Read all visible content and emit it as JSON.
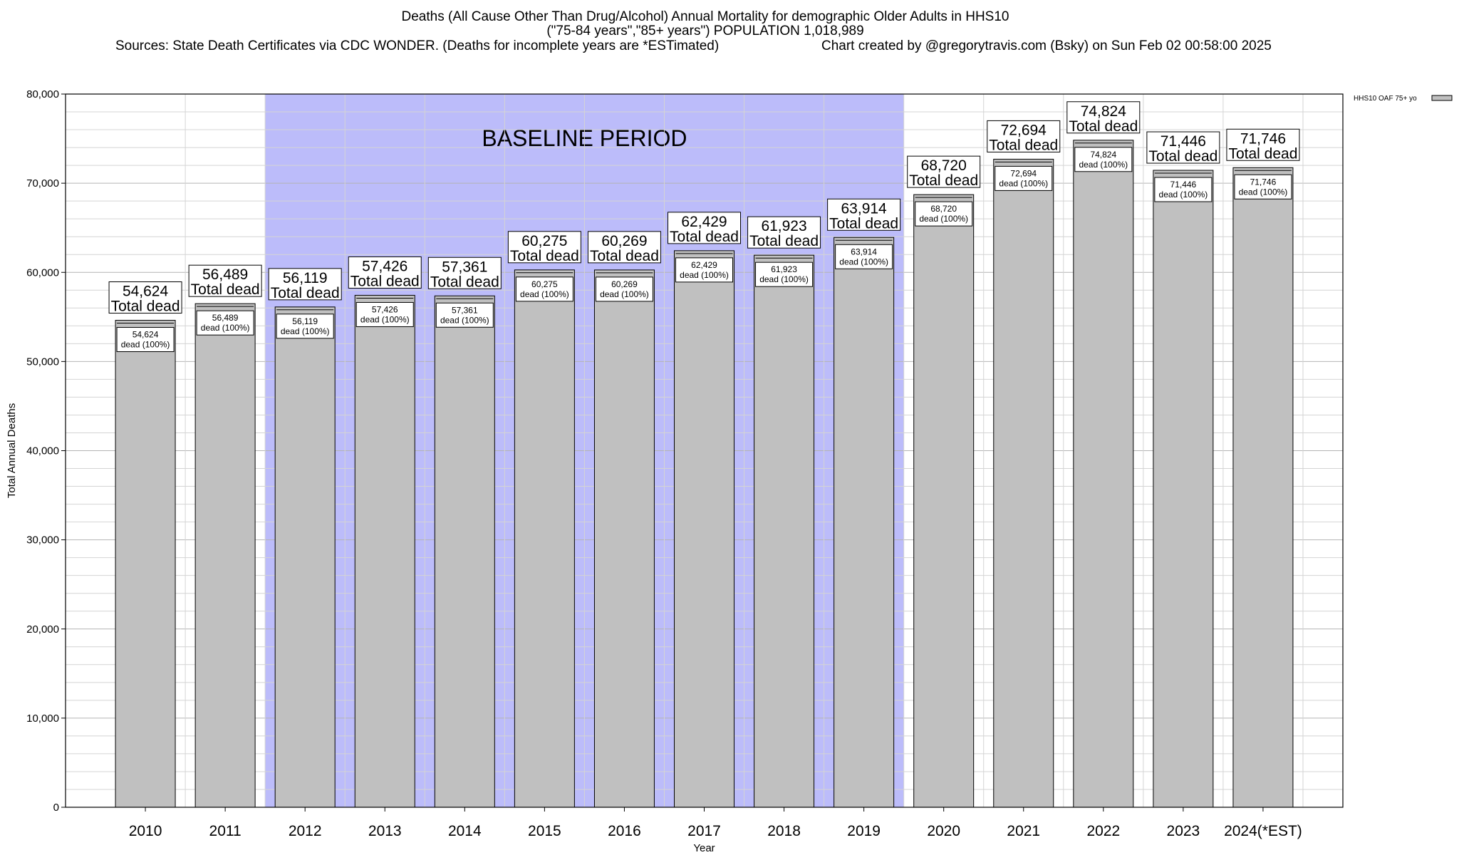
{
  "header": {
    "title_line1": "Deaths (All Cause Other Than Drug/Alcohol) Annual Mortality for demographic Older Adults in HHS10",
    "title_line2": "(\"75-84 years\",\"85+ years\") POPULATION 1,018,989",
    "sources": "Sources: State Death Certificates via CDC WONDER. (Deaths for incomplete years are *ESTimated)",
    "credit": "Chart created by @gregorytravis.com (Bsky) on Sun Feb 02 00:58:00 2025"
  },
  "chart_data": {
    "type": "bar",
    "categories": [
      "2010",
      "2011",
      "2012",
      "2013",
      "2014",
      "2015",
      "2016",
      "2017",
      "2018",
      "2019",
      "2020",
      "2021",
      "2022",
      "2023",
      "2024(*EST)"
    ],
    "series": [
      {
        "name": "HHS10 OAF 75+ yo",
        "values": [
          54624,
          56489,
          56119,
          57426,
          57361,
          60275,
          60269,
          62429,
          61923,
          63914,
          68720,
          72694,
          74824,
          71446,
          71746
        ],
        "color": "#c0c0c0"
      }
    ],
    "value_labels": [
      "54,624",
      "56,489",
      "56,119",
      "57,426",
      "57,361",
      "60,275",
      "60,269",
      "62,429",
      "61,923",
      "63,914",
      "68,720",
      "72,694",
      "74,824",
      "71,446",
      "71,746"
    ],
    "top_label_suffix": "Total dead",
    "inner_label_suffix": "dead (100%)",
    "xlabel": "Year",
    "ylabel": "Total Annual Deaths",
    "ylim": [
      0,
      80000
    ],
    "yticks": [
      0,
      10000,
      20000,
      30000,
      40000,
      50000,
      60000,
      70000,
      80000
    ],
    "ytick_labels": [
      "0",
      "10,000",
      "20,000",
      "30,000",
      "40,000",
      "50,000",
      "60,000",
      "70,000",
      "80,000"
    ],
    "minor_gridline_step": 2000,
    "grid": true,
    "legend_position": "top-right",
    "annotation": {
      "text": "BASELINE PERIOD",
      "start_category": "2012",
      "end_category": "2019",
      "color": "#bcbcfa"
    }
  }
}
